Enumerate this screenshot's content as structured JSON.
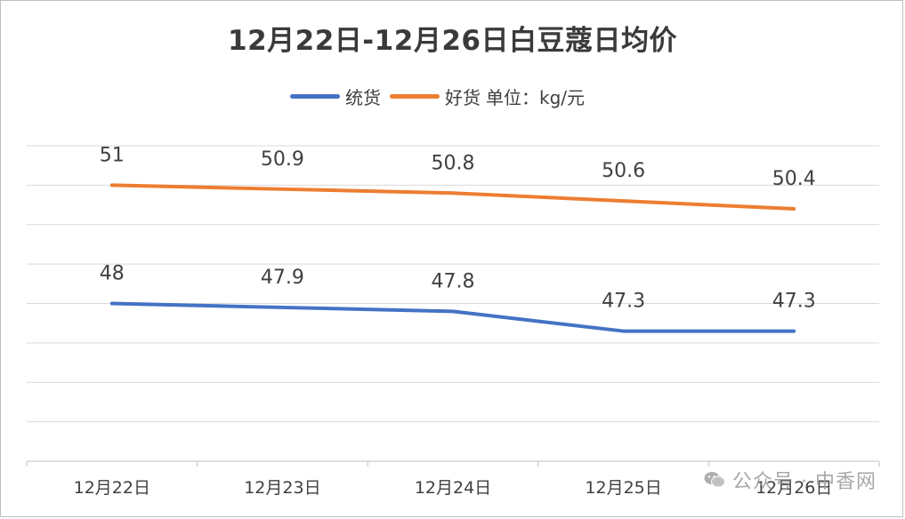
{
  "chart_data": {
    "type": "line",
    "title": "12月22日-12月26日白豆蔻日均价",
    "categories": [
      "12月22日",
      "12月23日",
      "12月24日",
      "12月25日",
      "12月26日"
    ],
    "series": [
      {
        "name": "统货",
        "values": [
          48,
          47.9,
          47.8,
          47.3,
          47.3
        ],
        "color": "#4472c4"
      },
      {
        "name": "好货",
        "values": [
          51,
          50.9,
          50.8,
          50.6,
          50.4
        ],
        "color": "#ed7d31"
      }
    ],
    "unit_label": "单位：kg/元",
    "ylim": [
      44,
      52
    ],
    "grid": true,
    "legend_position": "top"
  },
  "watermark": {
    "icon": "wechat-icon",
    "text": "公众号 · 中香网"
  }
}
